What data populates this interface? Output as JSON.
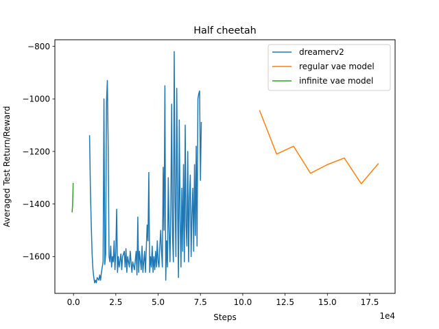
{
  "chart_data": {
    "type": "line",
    "title": "Half cheetah",
    "xlabel": "Steps",
    "ylabel": "Averaged Test Return/Reward",
    "x_offset_label": "1e4",
    "xlim": [
      -1.1,
      19.0
    ],
    "ylim": [
      -1740,
      -775
    ],
    "x_ticks": [
      {
        "value": 0,
        "label": "0.0"
      },
      {
        "value": 2.5,
        "label": "2.5"
      },
      {
        "value": 5.0,
        "label": "5.0"
      },
      {
        "value": 7.5,
        "label": "7.5"
      },
      {
        "value": 10.0,
        "label": "10.0"
      },
      {
        "value": 12.5,
        "label": "12.5"
      },
      {
        "value": 15.0,
        "label": "15.0"
      },
      {
        "value": 17.5,
        "label": "17.5"
      }
    ],
    "y_ticks": [
      {
        "value": -800,
        "label": "−800"
      },
      {
        "value": -1000,
        "label": "−1000"
      },
      {
        "value": -1200,
        "label": "−1200"
      },
      {
        "value": -1400,
        "label": "−1400"
      },
      {
        "value": -1600,
        "label": "−1600"
      }
    ],
    "legend_position": "top-right",
    "grid": false,
    "series": [
      {
        "name": "dreamerv2",
        "color": "#1f77b4",
        "points": [
          [
            0.95,
            -1140
          ],
          [
            1.0,
            -1350
          ],
          [
            1.05,
            -1480
          ],
          [
            1.1,
            -1590
          ],
          [
            1.15,
            -1650
          ],
          [
            1.2,
            -1680
          ],
          [
            1.25,
            -1700
          ],
          [
            1.3,
            -1690
          ],
          [
            1.35,
            -1700
          ],
          [
            1.4,
            -1680
          ],
          [
            1.5,
            -1690
          ],
          [
            1.55,
            -1670
          ],
          [
            1.6,
            -1690
          ],
          [
            1.65,
            -1660
          ],
          [
            1.7,
            -1640
          ],
          [
            1.75,
            -1620
          ],
          [
            1.8,
            -1000
          ],
          [
            1.85,
            -1630
          ],
          [
            1.9,
            -1590
          ],
          [
            1.95,
            -1010
          ],
          [
            2.0,
            -930
          ],
          [
            2.05,
            -1180
          ],
          [
            2.1,
            -1600
          ],
          [
            2.15,
            -1620
          ],
          [
            2.2,
            -1560
          ],
          [
            2.25,
            -1640
          ],
          [
            2.3,
            -1600
          ],
          [
            2.35,
            -1620
          ],
          [
            2.4,
            -1540
          ],
          [
            2.45,
            -1650
          ],
          [
            2.5,
            -1580
          ],
          [
            2.55,
            -1420
          ],
          [
            2.6,
            -1660
          ],
          [
            2.65,
            -1600
          ],
          [
            2.7,
            -1640
          ],
          [
            2.8,
            -1590
          ],
          [
            2.85,
            -1650
          ],
          [
            2.9,
            -1600
          ],
          [
            3.0,
            -1580
          ],
          [
            3.05,
            -1640
          ],
          [
            3.1,
            -1570
          ],
          [
            3.15,
            -1660
          ],
          [
            3.2,
            -1600
          ],
          [
            3.3,
            -1640
          ],
          [
            3.35,
            -1580
          ],
          [
            3.45,
            -1660
          ],
          [
            3.5,
            -1620
          ],
          [
            3.6,
            -1650
          ],
          [
            3.7,
            -1580
          ],
          [
            3.75,
            -1670
          ],
          [
            3.8,
            -1450
          ],
          [
            3.85,
            -1660
          ],
          [
            3.9,
            -1580
          ],
          [
            4.0,
            -1650
          ],
          [
            4.05,
            -1560
          ],
          [
            4.1,
            -1660
          ],
          [
            4.15,
            -1620
          ],
          [
            4.2,
            -1580
          ],
          [
            4.25,
            -1660
          ],
          [
            4.3,
            -1570
          ],
          [
            4.35,
            -1480
          ],
          [
            4.4,
            -1540
          ],
          [
            4.45,
            -1280
          ],
          [
            4.5,
            -1660
          ],
          [
            4.55,
            -1600
          ],
          [
            4.6,
            -1640
          ],
          [
            4.65,
            -1560
          ],
          [
            4.7,
            -1660
          ],
          [
            4.75,
            -1600
          ],
          [
            4.8,
            -1650
          ],
          [
            4.85,
            -1580
          ],
          [
            4.9,
            -1640
          ],
          [
            4.95,
            -1540
          ],
          [
            5.0,
            -1620
          ],
          [
            5.05,
            -1640
          ],
          [
            5.1,
            -1560
          ],
          [
            5.15,
            -1500
          ],
          [
            5.2,
            -1580
          ],
          [
            5.25,
            -1640
          ],
          [
            5.3,
            -1260
          ],
          [
            5.35,
            -1500
          ],
          [
            5.4,
            -950
          ],
          [
            5.45,
            -1690
          ],
          [
            5.5,
            -1540
          ],
          [
            5.55,
            -1640
          ],
          [
            5.6,
            -1300
          ],
          [
            5.65,
            -1500
          ],
          [
            5.7,
            -1620
          ],
          [
            5.75,
            -1420
          ],
          [
            5.8,
            -1020
          ],
          [
            5.85,
            -1520
          ],
          [
            5.9,
            -1620
          ],
          [
            5.95,
            -820
          ],
          [
            6.0,
            -1380
          ],
          [
            6.05,
            -1600
          ],
          [
            6.1,
            -960
          ],
          [
            6.15,
            -1400
          ],
          [
            6.2,
            -1680
          ],
          [
            6.25,
            -1080
          ],
          [
            6.3,
            -1460
          ],
          [
            6.35,
            -1640
          ],
          [
            6.4,
            -1340
          ],
          [
            6.45,
            -1580
          ],
          [
            6.5,
            -1250
          ],
          [
            6.55,
            -1620
          ],
          [
            6.6,
            -1100
          ],
          [
            6.65,
            -1480
          ],
          [
            6.7,
            -1560
          ],
          [
            6.75,
            -1200
          ],
          [
            6.8,
            -1620
          ],
          [
            6.85,
            -1380
          ],
          [
            6.9,
            -1290
          ],
          [
            6.95,
            -1600
          ],
          [
            7.0,
            -1440
          ],
          [
            7.05,
            -1340
          ],
          [
            7.1,
            -1580
          ],
          [
            7.15,
            -1250
          ],
          [
            7.2,
            -1520
          ],
          [
            7.25,
            -1180
          ],
          [
            7.3,
            -1560
          ],
          [
            7.35,
            -1000
          ],
          [
            7.4,
            -980
          ],
          [
            7.45,
            -970
          ],
          [
            7.5,
            -1310
          ],
          [
            7.55,
            -1090
          ]
        ]
      },
      {
        "name": "regular vae model",
        "color": "#ff7f0e",
        "points": [
          [
            11.0,
            -1045
          ],
          [
            12.0,
            -1210
          ],
          [
            13.0,
            -1180
          ],
          [
            14.0,
            -1283
          ],
          [
            15.0,
            -1250
          ],
          [
            16.0,
            -1225
          ],
          [
            17.0,
            -1323
          ],
          [
            18.0,
            -1247
          ]
        ]
      },
      {
        "name": "infinite vae model",
        "color": "#2ca02c",
        "points": [
          [
            -0.08,
            -1430
          ],
          [
            -0.05,
            -1400
          ],
          [
            -0.02,
            -1322
          ]
        ]
      }
    ]
  }
}
